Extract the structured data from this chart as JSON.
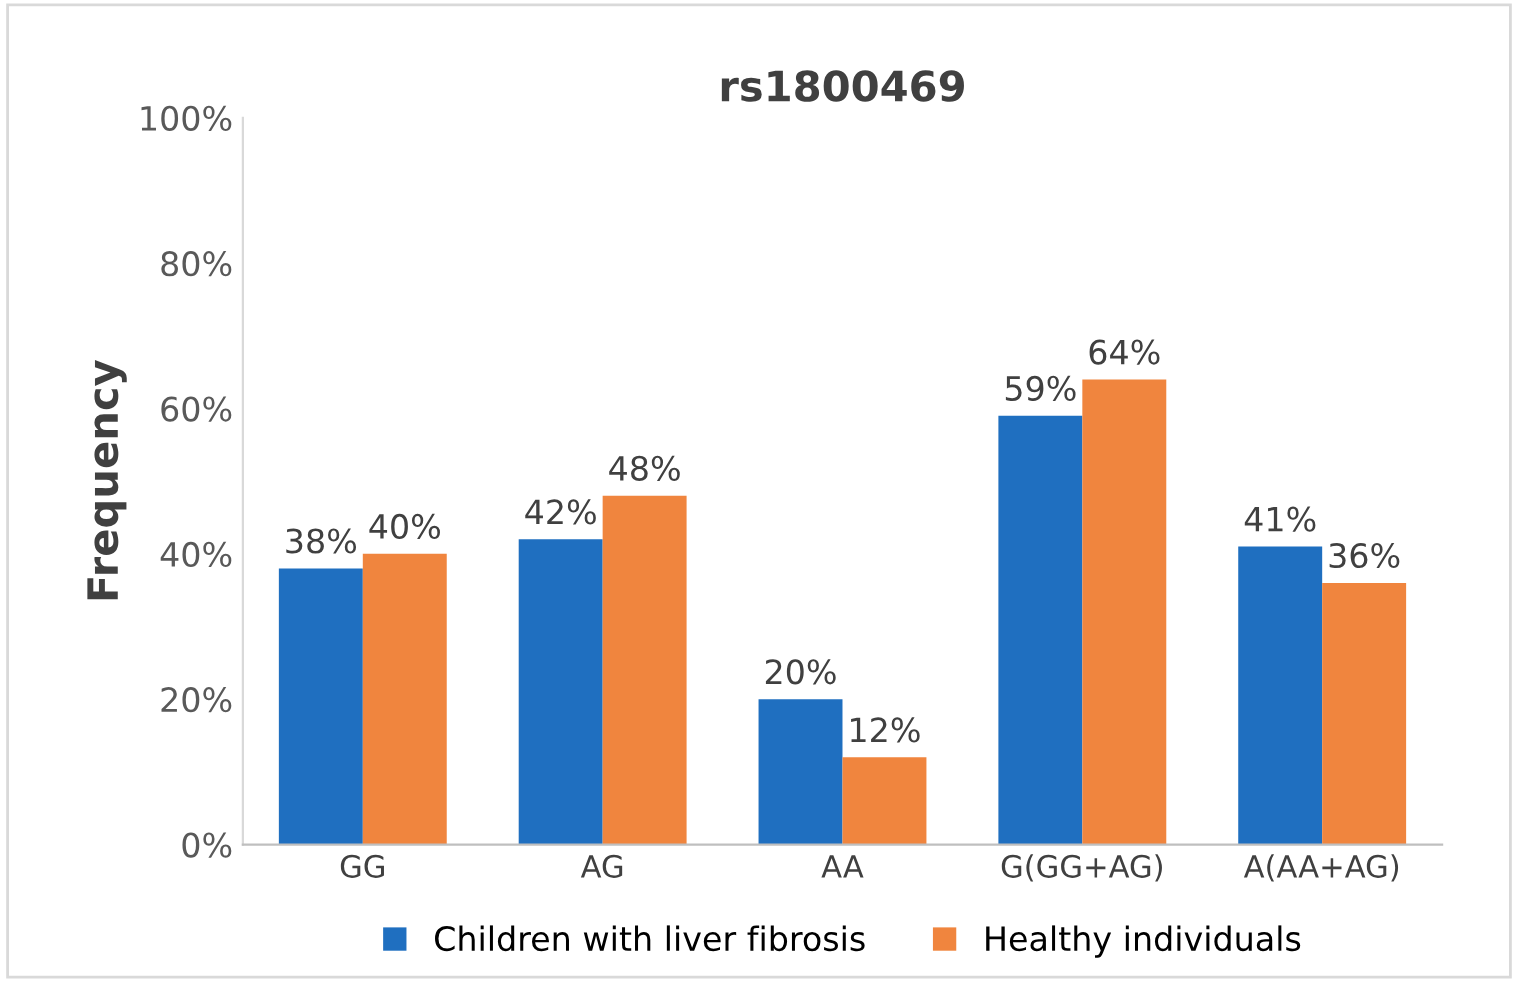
{
  "chart_data": {
    "type": "bar",
    "title": "rs1800469",
    "ylabel": "Frequency",
    "categories": [
      "GG",
      "AG",
      "AA",
      "G(GG+AG)",
      "A(AA+AG)"
    ],
    "series": [
      {
        "name": "Children with liver fibrosis",
        "color": "#1f6fc0",
        "values": [
          38,
          42,
          20,
          59,
          41
        ],
        "value_labels": [
          "38%",
          "42%",
          "20%",
          "59%",
          "41%"
        ]
      },
      {
        "name": "Healthy individuals",
        "color": "#f0853e",
        "values": [
          40,
          48,
          12,
          64,
          36
        ],
        "value_labels": [
          "40%",
          "48%",
          "12%",
          "64%",
          "36%"
        ]
      }
    ],
    "ylim": [
      0,
      100
    ],
    "yticks": [
      {
        "value": 0,
        "label": "0%"
      },
      {
        "value": 20,
        "label": "20%"
      },
      {
        "value": 40,
        "label": "40%"
      },
      {
        "value": 60,
        "label": "60%"
      },
      {
        "value": 80,
        "label": "80%"
      },
      {
        "value": 100,
        "label": "100%"
      }
    ],
    "grid": false,
    "legend": "bottom"
  }
}
